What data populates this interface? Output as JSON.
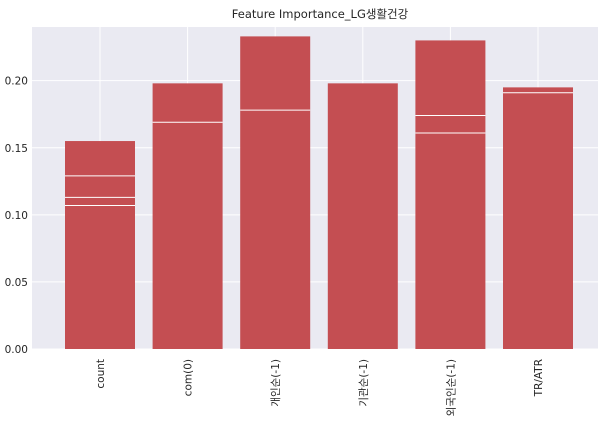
{
  "chart_data": {
    "type": "bar",
    "title": "Feature Importance_LG생활건강",
    "categories": [
      "count",
      "com(0)",
      "개인순(-1)",
      "기관순(-1)",
      "외국인순(-1)",
      "TR/ATR"
    ],
    "values": [
      0.155,
      0.198,
      0.233,
      0.198,
      0.23,
      0.195
    ],
    "inner_lines": [
      [
        0.129,
        0.113,
        0.107
      ],
      [
        0.169
      ],
      [
        0.178
      ],
      [],
      [
        0.174,
        0.161
      ],
      [
        0.191
      ]
    ],
    "yticks": [
      "0.00",
      "0.05",
      "0.10",
      "0.15",
      "0.20"
    ],
    "ylim": [
      0,
      0.24
    ],
    "xlabel": "",
    "ylabel": "",
    "grid": true,
    "colors": {
      "bar": "#c44e52",
      "background": "#eaeaf2",
      "grid": "#ffffff",
      "text": "#262626"
    }
  }
}
